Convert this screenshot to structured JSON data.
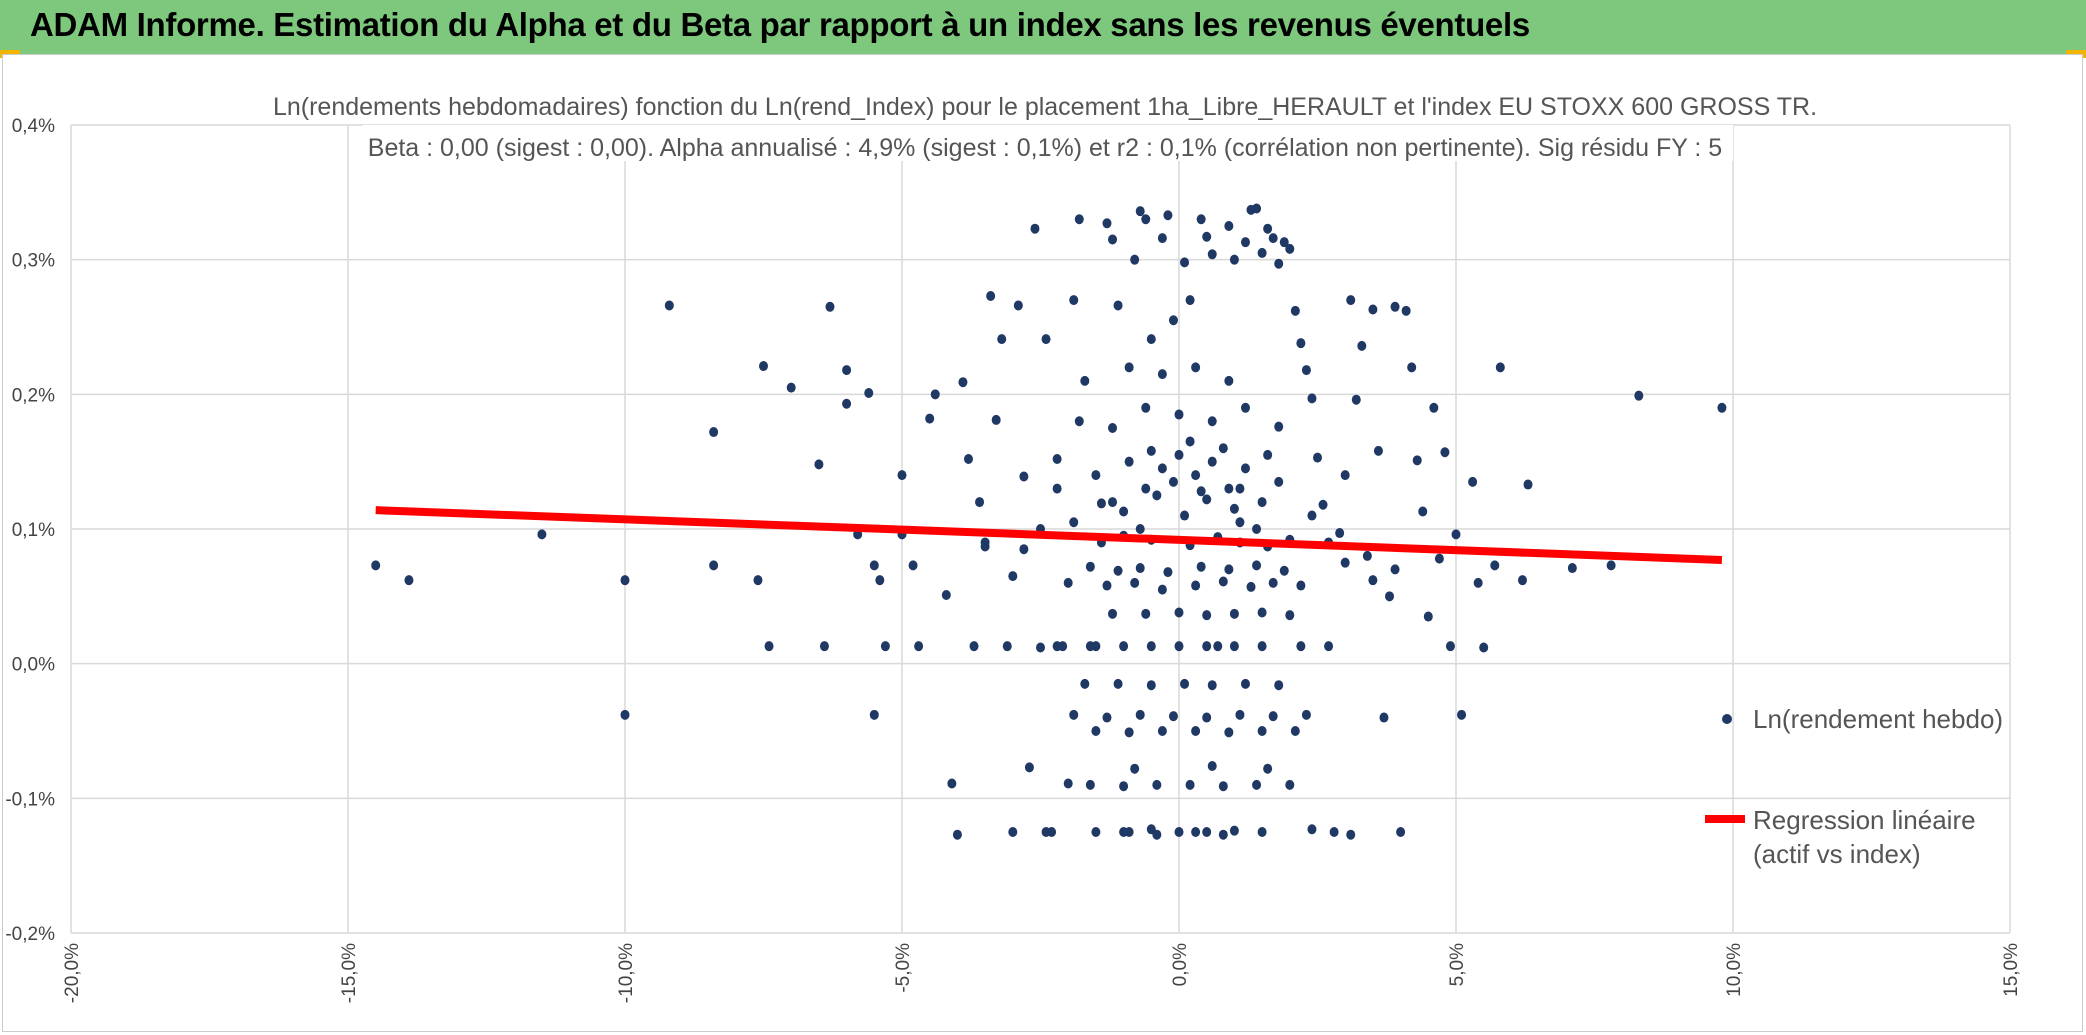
{
  "header": {
    "title": "ADAM Informe. Estimation du Alpha et du Beta par rapport à un index sans les revenus éventuels"
  },
  "colors": {
    "banner": "#7dc87d",
    "points": "#203864",
    "regression": "#ff0000",
    "grid": "#d9d9d9"
  },
  "chart_data": {
    "type": "scatter",
    "title_lines": [
      "Ln(rendements hebdomadaires) fonction du Ln(rend_Index) pour le placement 1ha_Libre_HERAULT et l'index EU STOXX 600 GROSS TR.",
      "Beta : 0,00 (sigest : 0,00). Alpha annualisé : 4,9% (sigest : 0,1%) et r2 : 0,1% (corrélation non pertinente). Sig résidu FY : 5"
    ],
    "xlim": [
      -20,
      15
    ],
    "ylim": [
      -0.2,
      0.4
    ],
    "x_ticks": [
      "-20,0%",
      "-15,0%",
      "-10,0%",
      "-5,0%",
      "0,0%",
      "5,0%",
      "10,0%",
      "15,0%"
    ],
    "y_ticks": [
      "0,4%",
      "0,3%",
      "0,2%",
      "0,1%",
      "0,0%",
      "-0,1%",
      "-0,2%"
    ],
    "grid": true,
    "legend_position": "right",
    "series": [
      {
        "name": "Ln(rendement hebdo)",
        "kind": "scatter",
        "points": [
          [
            -14.5,
            0.073
          ],
          [
            -13.9,
            0.062
          ],
          [
            -11.5,
            0.096
          ],
          [
            -10,
            0.062
          ],
          [
            -10,
            -0.038
          ],
          [
            -9.2,
            0.266
          ],
          [
            -8.4,
            0.172
          ],
          [
            -8.4,
            0.073
          ],
          [
            -7.5,
            0.221
          ],
          [
            -7.6,
            0.062
          ],
          [
            -7.4,
            0.013
          ],
          [
            -7.0,
            0.205
          ],
          [
            -6.5,
            0.148
          ],
          [
            -6.4,
            0.013
          ],
          [
            -6.3,
            0.265
          ],
          [
            -6.0,
            0.218
          ],
          [
            -6.0,
            0.193
          ],
          [
            -5.8,
            0.096
          ],
          [
            -5.6,
            0.201
          ],
          [
            -5.5,
            0.073
          ],
          [
            -5.5,
            -0.038
          ],
          [
            -5.4,
            0.062
          ],
          [
            -5.3,
            0.013
          ],
          [
            -5.0,
            0.14
          ],
          [
            -5.0,
            0.096
          ],
          [
            -4.8,
            0.073
          ],
          [
            -4.7,
            0.013
          ],
          [
            -4.5,
            0.182
          ],
          [
            -4.4,
            0.2
          ],
          [
            -4.2,
            0.051
          ],
          [
            -4.1,
            -0.089
          ],
          [
            -4.0,
            -0.127
          ],
          [
            -3.9,
            0.209
          ],
          [
            -3.8,
            0.152
          ],
          [
            -3.7,
            0.013
          ],
          [
            -3.6,
            0.12
          ],
          [
            -3.5,
            0.09
          ],
          [
            -3.4,
            0.273
          ],
          [
            -3.3,
            0.181
          ],
          [
            -3.2,
            0.241
          ],
          [
            -3.1,
            0.013
          ],
          [
            -3.0,
            -0.125
          ],
          [
            -2.9,
            0.266
          ],
          [
            -2.8,
            0.139
          ],
          [
            -2.7,
            -0.077
          ],
          [
            -2.6,
            0.323
          ],
          [
            -2.5,
            0.012
          ],
          [
            -2.4,
            0.241
          ],
          [
            -2.3,
            -0.125
          ],
          [
            -2.2,
            0.152
          ],
          [
            -2.1,
            0.013
          ],
          [
            -2.0,
            -0.089
          ],
          [
            -1.9,
            0.27
          ],
          [
            -1.8,
            0.33
          ],
          [
            -1.7,
            0.21
          ],
          [
            -1.6,
            0.013
          ],
          [
            -1.5,
            -0.125
          ],
          [
            -1.4,
            0.119
          ],
          [
            -1.3,
            0.327
          ],
          [
            -1.2,
            0.315
          ],
          [
            -1.1,
            0.266
          ],
          [
            -1.0,
            0.013
          ],
          [
            -0.9,
            -0.125
          ],
          [
            -0.8,
            0.3
          ],
          [
            -0.7,
            0.336
          ],
          [
            -0.6,
            0.33
          ],
          [
            -0.5,
            0.241
          ],
          [
            -0.4,
            -0.127
          ],
          [
            -0.3,
            0.316
          ],
          [
            -0.2,
            0.333
          ],
          [
            -0.1,
            0.255
          ],
          [
            0.0,
            -0.125
          ],
          [
            0.1,
            0.298
          ],
          [
            0.2,
            0.27
          ],
          [
            0.3,
            -0.125
          ],
          [
            0.4,
            0.33
          ],
          [
            0.5,
            0.317
          ],
          [
            0.6,
            0.304
          ],
          [
            0.7,
            0.013
          ],
          [
            0.8,
            -0.127
          ],
          [
            0.9,
            0.325
          ],
          [
            1.0,
            0.3
          ],
          [
            1.1,
            0.13
          ],
          [
            1.2,
            0.313
          ],
          [
            1.3,
            0.337
          ],
          [
            1.4,
            0.338
          ],
          [
            1.5,
            0.305
          ],
          [
            1.6,
            0.323
          ],
          [
            1.7,
            0.316
          ],
          [
            1.8,
            0.297
          ],
          [
            1.9,
            0.313
          ],
          [
            2.0,
            0.308
          ],
          [
            2.1,
            0.262
          ],
          [
            2.2,
            0.238
          ],
          [
            2.3,
            0.218
          ],
          [
            2.4,
            0.197
          ],
          [
            2.5,
            0.153
          ],
          [
            2.6,
            0.118
          ],
          [
            2.7,
            0.013
          ],
          [
            2.8,
            -0.125
          ],
          [
            2.9,
            0.097
          ],
          [
            3.0,
            0.14
          ],
          [
            3.1,
            0.27
          ],
          [
            3.2,
            0.196
          ],
          [
            3.3,
            0.236
          ],
          [
            3.4,
            0.08
          ],
          [
            3.5,
            0.263
          ],
          [
            3.6,
            0.158
          ],
          [
            3.7,
            -0.04
          ],
          [
            3.8,
            0.05
          ],
          [
            3.9,
            0.265
          ],
          [
            4.0,
            -0.125
          ],
          [
            4.1,
            0.262
          ],
          [
            4.2,
            0.22
          ],
          [
            4.3,
            0.151
          ],
          [
            4.4,
            0.113
          ],
          [
            4.5,
            0.035
          ],
          [
            4.6,
            0.19
          ],
          [
            4.7,
            0.078
          ],
          [
            4.8,
            0.157
          ],
          [
            4.9,
            0.013
          ],
          [
            5.0,
            0.096
          ],
          [
            5.1,
            -0.038
          ],
          [
            5.3,
            0.135
          ],
          [
            5.4,
            0.06
          ],
          [
            5.5,
            0.012
          ],
          [
            5.7,
            0.073
          ],
          [
            5.8,
            0.22
          ],
          [
            6.2,
            0.062
          ],
          [
            6.3,
            0.133
          ],
          [
            7.1,
            0.071
          ],
          [
            7.8,
            0.073
          ],
          [
            8.3,
            0.199
          ],
          [
            9.8,
            0.19
          ],
          [
            -1.5,
            0.14
          ],
          [
            -1.2,
            0.12
          ],
          [
            -0.9,
            0.15
          ],
          [
            -0.6,
            0.13
          ],
          [
            -0.3,
            0.145
          ],
          [
            0.0,
            0.155
          ],
          [
            0.3,
            0.14
          ],
          [
            0.6,
            0.15
          ],
          [
            0.9,
            0.13
          ],
          [
            1.2,
            0.145
          ],
          [
            1.5,
            0.12
          ],
          [
            1.8,
            0.135
          ],
          [
            -1.4,
            0.09
          ],
          [
            -1.0,
            0.095
          ],
          [
            -0.5,
            0.092
          ],
          [
            0.2,
            0.088
          ],
          [
            0.7,
            0.094
          ],
          [
            1.1,
            0.09
          ],
          [
            1.6,
            0.087
          ],
          [
            2.0,
            0.092
          ],
          [
            -1.6,
            0.072
          ],
          [
            -1.1,
            0.069
          ],
          [
            -0.7,
            0.071
          ],
          [
            -0.2,
            0.068
          ],
          [
            0.4,
            0.072
          ],
          [
            0.9,
            0.07
          ],
          [
            1.4,
            0.073
          ],
          [
            1.9,
            0.069
          ],
          [
            -1.3,
            0.058
          ],
          [
            -0.8,
            0.06
          ],
          [
            -0.3,
            0.055
          ],
          [
            0.3,
            0.058
          ],
          [
            0.8,
            0.061
          ],
          [
            1.3,
            0.057
          ],
          [
            1.7,
            0.06
          ],
          [
            -1.2,
            0.037
          ],
          [
            -0.6,
            0.037
          ],
          [
            0.0,
            0.038
          ],
          [
            0.5,
            0.036
          ],
          [
            1.0,
            0.037
          ],
          [
            1.5,
            0.038
          ],
          [
            2.0,
            0.036
          ],
          [
            -1.7,
            -0.015
          ],
          [
            -1.1,
            -0.015
          ],
          [
            -0.5,
            -0.016
          ],
          [
            0.1,
            -0.015
          ],
          [
            0.6,
            -0.016
          ],
          [
            1.2,
            -0.015
          ],
          [
            1.8,
            -0.016
          ],
          [
            -1.9,
            -0.038
          ],
          [
            -1.3,
            -0.04
          ],
          [
            -0.7,
            -0.038
          ],
          [
            -0.1,
            -0.039
          ],
          [
            0.5,
            -0.04
          ],
          [
            1.1,
            -0.038
          ],
          [
            1.7,
            -0.039
          ],
          [
            2.3,
            -0.038
          ],
          [
            -1.5,
            -0.05
          ],
          [
            -0.9,
            -0.051
          ],
          [
            -0.3,
            -0.05
          ],
          [
            0.3,
            -0.05
          ],
          [
            0.9,
            -0.051
          ],
          [
            1.5,
            -0.05
          ],
          [
            2.1,
            -0.05
          ],
          [
            -1.6,
            -0.09
          ],
          [
            -1.0,
            -0.091
          ],
          [
            -0.4,
            -0.09
          ],
          [
            0.2,
            -0.09
          ],
          [
            0.8,
            -0.091
          ],
          [
            1.4,
            -0.09
          ],
          [
            2.0,
            -0.09
          ],
          [
            -0.8,
            -0.078
          ],
          [
            0.6,
            -0.076
          ],
          [
            1.6,
            -0.078
          ],
          [
            -1.8,
            0.18
          ],
          [
            -1.2,
            0.175
          ],
          [
            -0.6,
            0.19
          ],
          [
            0.0,
            0.185
          ],
          [
            0.6,
            0.18
          ],
          [
            1.2,
            0.19
          ],
          [
            1.8,
            0.176
          ],
          [
            -0.9,
            0.22
          ],
          [
            -0.3,
            0.215
          ],
          [
            0.3,
            0.22
          ],
          [
            0.9,
            0.21
          ],
          [
            -2.2,
            0.13
          ],
          [
            -2.5,
            0.1
          ],
          [
            -2.8,
            0.085
          ],
          [
            2.4,
            0.11
          ],
          [
            2.7,
            0.09
          ],
          [
            3.0,
            0.075
          ],
          [
            -2.0,
            0.06
          ],
          [
            2.2,
            0.058
          ],
          [
            -3.5,
            0.087
          ],
          [
            -3.0,
            0.065
          ],
          [
            3.5,
            0.062
          ],
          [
            3.9,
            0.07
          ],
          [
            -1.0,
            0.113
          ],
          [
            0.1,
            0.11
          ],
          [
            1.0,
            0.115
          ],
          [
            -0.4,
            0.125
          ],
          [
            0.4,
            0.128
          ],
          [
            1.4,
            0.1
          ],
          [
            -1.9,
            0.105
          ],
          [
            0.2,
            0.165
          ],
          [
            0.8,
            0.16
          ],
          [
            -0.5,
            0.158
          ],
          [
            1.6,
            0.155
          ],
          [
            -0.1,
            0.135
          ],
          [
            0.5,
            0.122
          ],
          [
            1.1,
            0.105
          ],
          [
            -0.7,
            0.1
          ],
          [
            0.0,
            0.013
          ],
          [
            0.5,
            0.013
          ],
          [
            -0.5,
            0.013
          ],
          [
            1.0,
            0.013
          ],
          [
            -1.5,
            0.013
          ],
          [
            1.5,
            0.013
          ],
          [
            -2.2,
            0.013
          ],
          [
            2.2,
            0.013
          ],
          [
            -1.0,
            -0.125
          ],
          [
            -0.5,
            -0.123
          ],
          [
            0.5,
            -0.125
          ],
          [
            1.0,
            -0.124
          ],
          [
            1.5,
            -0.125
          ],
          [
            2.4,
            -0.123
          ],
          [
            -2.4,
            -0.125
          ],
          [
            3.1,
            -0.127
          ]
        ]
      },
      {
        "name": "Regression linéaire (actif vs index)",
        "kind": "line",
        "points": [
          [
            -14.5,
            0.114
          ],
          [
            9.8,
            0.077
          ]
        ]
      }
    ],
    "legend": [
      {
        "label": "Ln(rendement hebdo)"
      },
      {
        "label_line1": "Regression linéaire",
        "label_line2": "(actif vs index)"
      }
    ]
  }
}
